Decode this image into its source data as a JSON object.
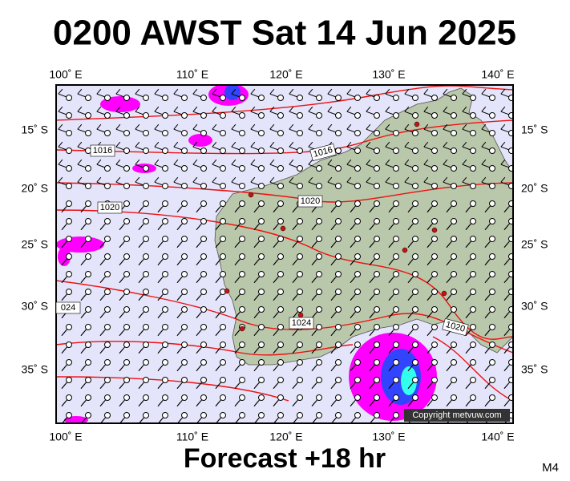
{
  "header": {
    "title": "0200 AWST Sat 14 Jun 2025"
  },
  "axes": {
    "longitudes": [
      "100˚ E",
      "110˚ E",
      "120˚ E",
      "130˚ E",
      "140˚ E"
    ],
    "latitudes": [
      "15˚ S",
      "20˚ S",
      "25˚ S",
      "30˚ S",
      "35˚ S"
    ]
  },
  "isobar_labels": [
    "1016",
    "1016",
    "1020",
    "1020",
    "024",
    "1024",
    "1020"
  ],
  "copyright": "Copyright metvuw.com",
  "footer": {
    "forecast": "Forecast +18 hr",
    "model": "M4"
  }
}
